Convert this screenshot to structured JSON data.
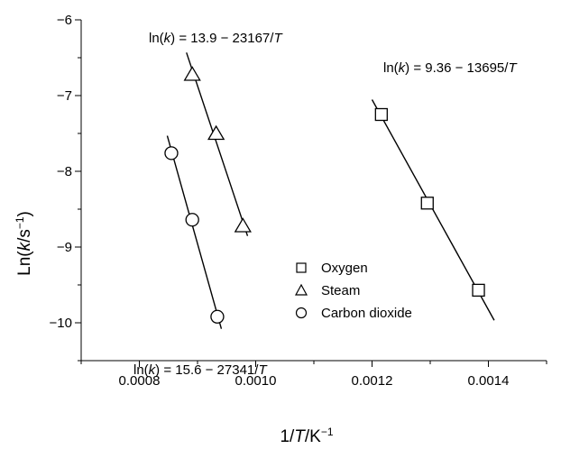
{
  "chart_data": {
    "type": "scatter",
    "xlabel": "1/T/K⁻¹",
    "ylabel": "Ln(k/s⁻¹)",
    "xlim": [
      0.0007,
      0.0015
    ],
    "ylim": [
      -10.5,
      -6
    ],
    "xticks": [
      0.0008,
      0.001,
      0.0012,
      0.0014
    ],
    "xtick_labels": [
      "0.0008",
      "0.0010",
      "0.0012",
      "0.0014"
    ],
    "yticks": [
      -6,
      -7,
      -8,
      -9,
      -10
    ],
    "ytick_labels": [
      "−6",
      "−7",
      "−8",
      "−9",
      "−10"
    ],
    "grid": false,
    "legend_position": "center",
    "series": [
      {
        "name": "Oxygen",
        "marker": "square",
        "x": [
          0.001216,
          0.001295,
          0.001383
        ],
        "y": [
          -7.25,
          -8.42,
          -9.57
        ],
        "fit": {
          "x_range": [
            0.0012,
            0.00141
          ]
        },
        "equation": {
          "pre": "ln(",
          "k": "k",
          "post": ") = 9.36 − 13695/",
          "T": "T"
        }
      },
      {
        "name": "Steam",
        "marker": "triangle",
        "x": [
          0.000891,
          0.000932,
          0.000978
        ],
        "y": [
          -6.72,
          -7.5,
          -8.72
        ],
        "fit": {
          "x_range": [
            0.000881,
            0.000986
          ]
        },
        "equation": {
          "pre": "ln(",
          "k": "k",
          "post": ") = 13.9 − 23167/",
          "T": "T"
        }
      },
      {
        "name": "Carbon dioxide",
        "marker": "circle",
        "x": [
          0.000855,
          0.000891,
          0.000934
        ],
        "y": [
          -7.76,
          -8.64,
          -9.92
        ],
        "fit": {
          "x_range": [
            0.000848,
            0.000941
          ]
        },
        "equation": {
          "pre": "ln(",
          "k": "k",
          "post": ") = 15.6 − 27341/",
          "T": "T"
        }
      }
    ]
  }
}
